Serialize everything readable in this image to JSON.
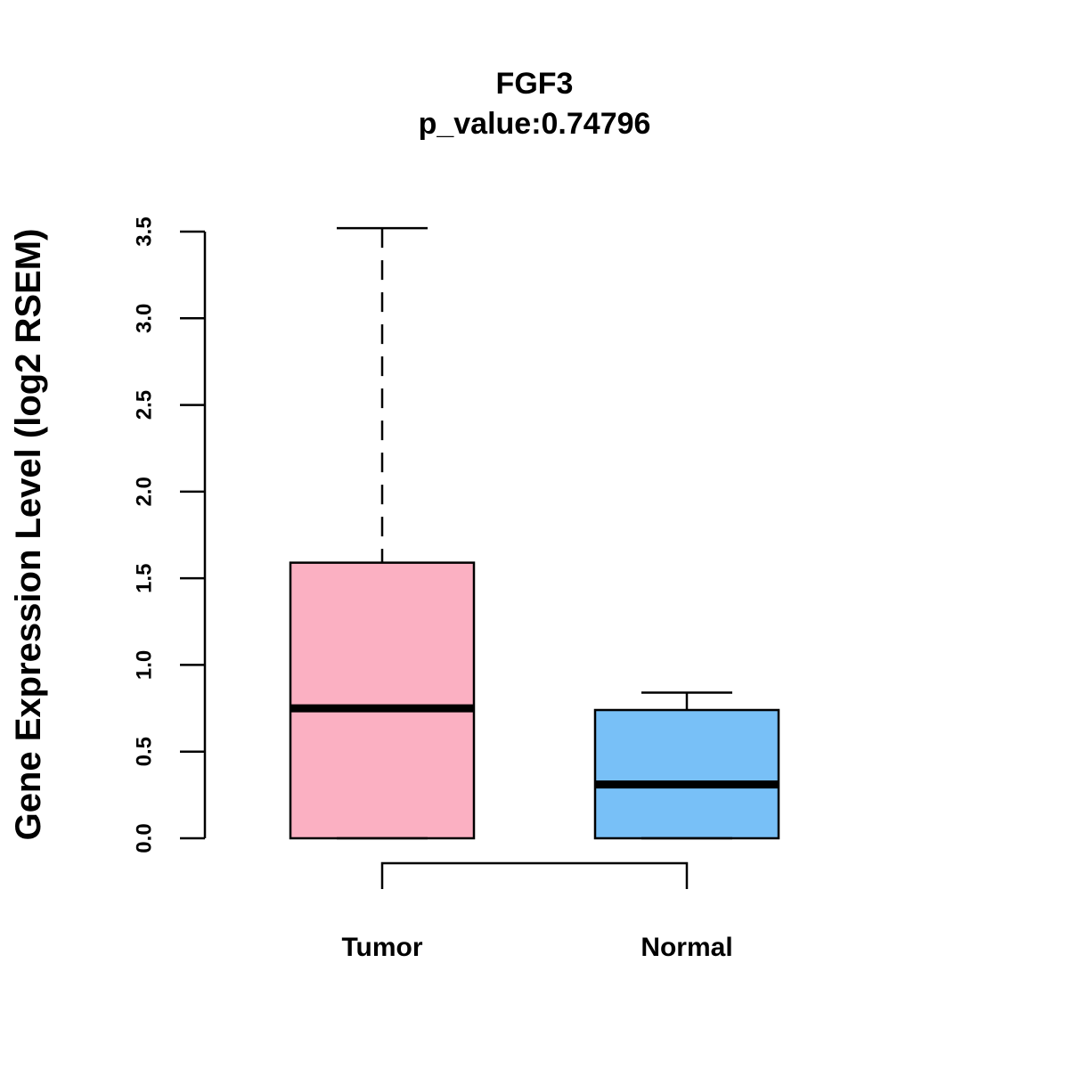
{
  "chart_data": {
    "type": "boxplot",
    "title": "FGF3",
    "subtitle": "p_value:0.74796",
    "xlabel": "",
    "ylabel": "Gene Expression Level (log2 RSEM)",
    "ylim": [
      0,
      3.5
    ],
    "yticks": [
      0.0,
      0.5,
      1.0,
      1.5,
      2.0,
      2.5,
      3.0,
      3.5
    ],
    "ytick_labels": [
      "0.0",
      "0.5",
      "1.0",
      "1.5",
      "2.0",
      "2.5",
      "3.0",
      "3.5"
    ],
    "categories": [
      "Tumor",
      "Normal"
    ],
    "boxes": [
      {
        "name": "Tumor",
        "min": 0.0,
        "q1": 0.0,
        "median": 0.75,
        "q3": 1.59,
        "whisker_high": 3.52,
        "color": "#FBB0C2"
      },
      {
        "name": "Normal",
        "min": 0.0,
        "q1": 0.0,
        "median": 0.31,
        "q3": 0.74,
        "whisker_high": 0.84,
        "color": "#78C0F7"
      }
    ],
    "comparison_bracket": {
      "from": "Tumor",
      "to": "Normal"
    },
    "grid": false,
    "legend": "none"
  }
}
